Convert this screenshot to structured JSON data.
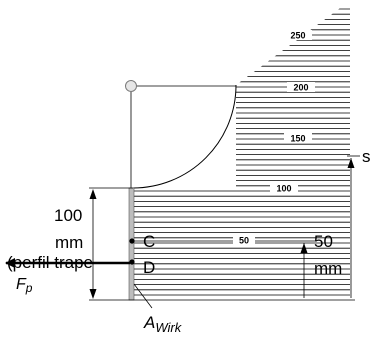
{
  "scale_labels": {
    "s250": "250",
    "s200": "200",
    "s150": "150",
    "s100": "100",
    "s50": "50"
  },
  "labels": {
    "point_c": "C",
    "point_d": "D",
    "force_f": "F",
    "force_f_sub": "p",
    "area_a": "A",
    "area_a_sub": "Wirk",
    "left_dim_value": "100",
    "left_dim_unit": "mm",
    "right_dim_value": "50",
    "right_dim_unit": "mm",
    "edge_symbol": "s",
    "overlay_caption": "(perfil trape"
  },
  "colors": {
    "ink": "#000000",
    "wall": "#bdbdbd",
    "pivot_fill": "#e6e6e6"
  }
}
